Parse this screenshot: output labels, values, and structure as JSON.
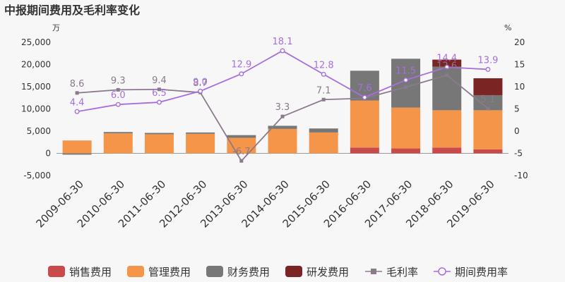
{
  "title": "中报期间费用及毛利率变化",
  "chart_data": {
    "type": "bar",
    "title": "中报期间费用及毛利率变化",
    "categories": [
      "2009-06-30",
      "2010-06-30",
      "2011-06-30",
      "2012-06-30",
      "2013-06-30",
      "2014-06-30",
      "2015-06-30",
      "2016-06-30",
      "2017-06-30",
      "2018-06-30",
      "2019-06-30"
    ],
    "left_axis": {
      "unit": "万",
      "ylim": [
        -5000,
        25000
      ],
      "ticks": [
        "-5,000",
        "0",
        "5,000",
        "10,000",
        "15,000",
        "20,000",
        "25,000"
      ]
    },
    "right_axis": {
      "unit": "%",
      "ylim": [
        -10,
        20
      ],
      "ticks": [
        "-10",
        "-5",
        "0",
        "5",
        "10",
        "15",
        "20"
      ]
    },
    "bar_series": [
      {
        "name": "销售费用",
        "color": "#c94a4a",
        "values": [
          0,
          0,
          0,
          0,
          0,
          0,
          0,
          1300,
          1100,
          1300,
          900
        ]
      },
      {
        "name": "管理费用",
        "color": "#f5954a",
        "values": [
          2900,
          4500,
          4300,
          4400,
          3500,
          5500,
          4700,
          10600,
          9200,
          8400,
          8800
        ]
      },
      {
        "name": "财务费用",
        "color": "#777777",
        "values": [
          -300,
          300,
          300,
          300,
          600,
          700,
          900,
          6700,
          11000,
          9800,
          3400
        ]
      },
      {
        "name": "研发费用",
        "color": "#7a2424",
        "values": [
          0,
          0,
          0,
          0,
          0,
          0,
          0,
          0,
          0,
          1600,
          3800
        ]
      }
    ],
    "line_series": [
      {
        "name": "毛利率",
        "color": "#8a7a8c",
        "marker": "square",
        "values": [
          8.6,
          9.3,
          9.4,
          8.7,
          -6.7,
          3.3,
          7.1,
          7.4,
          9.9,
          12.6,
          5.1
        ],
        "labels": [
          "8.6",
          "9.3",
          "9.4",
          "8.7",
          "-6.7",
          "3.3",
          "7.1",
          "",
          "",
          "12.6",
          "5.1"
        ]
      },
      {
        "name": "期间费用率",
        "color": "#a86ee0",
        "marker": "circle",
        "values": [
          4.4,
          6.0,
          6.5,
          9.0,
          12.9,
          18.1,
          12.8,
          7.6,
          11.5,
          14.4,
          13.9
        ],
        "labels": [
          "4.4",
          "6.0",
          "6.5",
          "9.0",
          "12.9",
          "18.1",
          "12.8",
          "7.6",
          "11.5",
          "14.4",
          "13.9"
        ]
      }
    ],
    "grid": false,
    "legend": "bottom"
  }
}
